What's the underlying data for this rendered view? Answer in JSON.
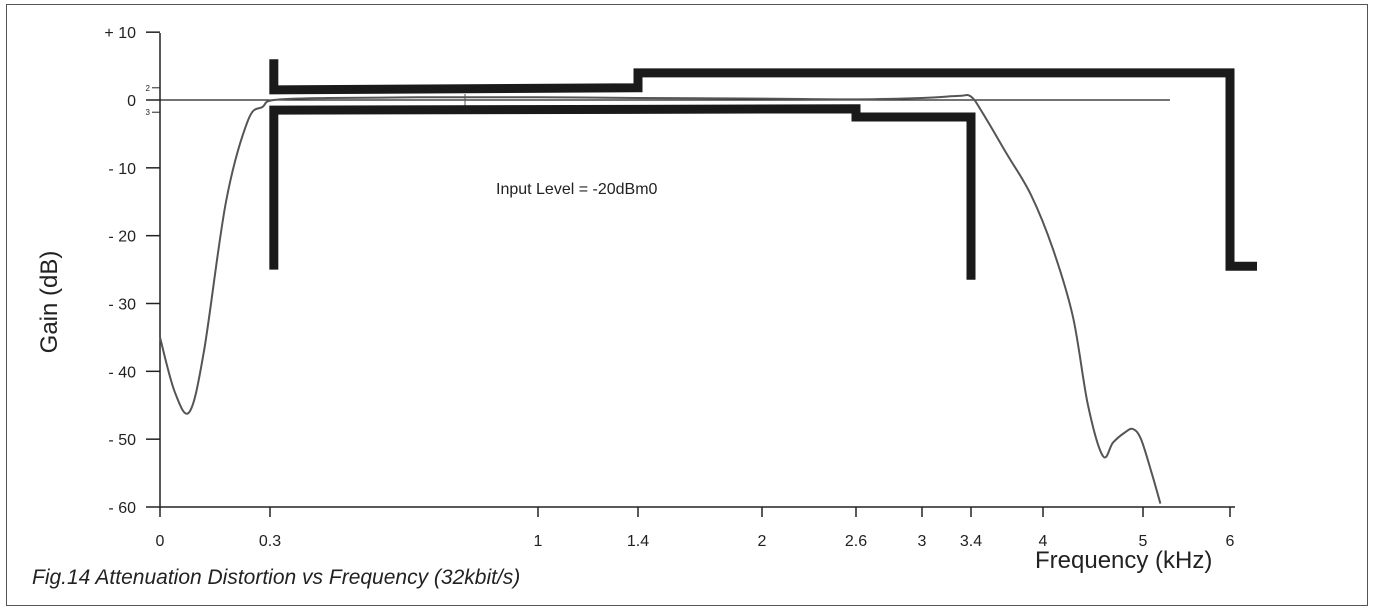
{
  "chart_data": {
    "type": "line",
    "caption": "Fig.14 Attenuation Distortion vs Frequency (32kbit/s)",
    "xlabel": "Frequency (kHz)",
    "ylabel": "Gain (dB)",
    "annotation": "Input Level = -20dBm0",
    "x_scale": "nonlinear",
    "ylim": [
      -60,
      10
    ],
    "x_ticks": [
      {
        "value": 0,
        "label": "0"
      },
      {
        "value": 0.3,
        "label": "0.3"
      },
      {
        "value": 1,
        "label": "1"
      },
      {
        "value": 1.4,
        "label": "1.4"
      },
      {
        "value": 2,
        "label": "2"
      },
      {
        "value": 2.6,
        "label": "2.6"
      },
      {
        "value": 3,
        "label": "3"
      },
      {
        "value": 3.4,
        "label": "3.4"
      },
      {
        "value": 4,
        "label": "4"
      },
      {
        "value": 5,
        "label": "5"
      },
      {
        "value": 6,
        "label": "6"
      }
    ],
    "y_ticks": [
      {
        "value": 10,
        "label": "+ 10"
      },
      {
        "value": 0,
        "label": "0"
      },
      {
        "value": -10,
        "label": "- 10"
      },
      {
        "value": -20,
        "label": "- 20"
      },
      {
        "value": -30,
        "label": "- 30"
      },
      {
        "value": -40,
        "label": "- 40"
      },
      {
        "value": -50,
        "label": "- 50"
      },
      {
        "value": -60,
        "label": "- 60"
      }
    ],
    "minor_y_ticks": [
      {
        "value": 1.8,
        "label": "2"
      },
      {
        "value": -1.8,
        "label": "3"
      }
    ],
    "series": [
      {
        "color": "#555555",
        "x": [
          0,
          0.04,
          0.08,
          0.12,
          0.18,
          0.24,
          0.28,
          0.31,
          0.45,
          0.7,
          1.0,
          1.4,
          2.0,
          2.6,
          3.0,
          3.3,
          3.4,
          3.5,
          3.7,
          3.9,
          4.1,
          4.3,
          4.45,
          4.6,
          4.7,
          4.82,
          4.9,
          4.98,
          5.1,
          5.2
        ],
        "y": [
          -35,
          -43,
          -46,
          -37,
          -15,
          -3,
          -1,
          0,
          0.3,
          0.4,
          0.4,
          0.3,
          0.2,
          0.1,
          0.3,
          0.6,
          0.5,
          -2,
          -8,
          -14,
          -22,
          -32,
          -45,
          -52.5,
          -50.5,
          -49,
          -48.5,
          -50,
          -55,
          -59.5
        ]
      }
    ],
    "masks": [
      {
        "name": "upper",
        "x": [
          0.31,
          0.31,
          1.4,
          1.4,
          6.0,
          6.0,
          6.25
        ],
        "y": [
          6,
          1.5,
          1.8,
          4,
          4,
          -24.5,
          -24.5
        ]
      },
      {
        "name": "lower",
        "x": [
          0.31,
          0.31,
          2.6,
          2.6,
          3.4,
          3.4
        ],
        "y": [
          -25,
          -1.5,
          -1.3,
          -2.5,
          -2.5,
          -26.5
        ]
      }
    ],
    "grid": false,
    "legend": "none"
  }
}
